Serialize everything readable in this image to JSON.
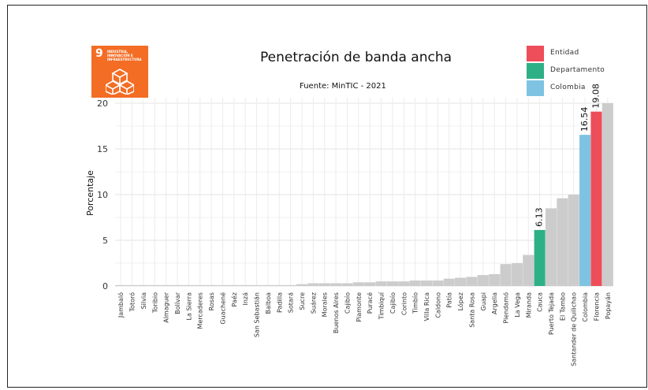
{
  "header": {
    "title": "Penetración de banda ancha",
    "subtitle": "Fuente: MinTIC - 2021"
  },
  "sdg_badge": {
    "number": "9",
    "text_line1": "INDUSTRIA,",
    "text_line2": "INNOVACIÓN E",
    "text_line3": "INFRAESTRUCTURA",
    "color": "#f36d25"
  },
  "legend": [
    {
      "label": "Entidad",
      "color": "#ee4d5a"
    },
    {
      "label": "Departamento",
      "color": "#2eb086"
    },
    {
      "label": "Colombia",
      "color": "#7ec3e2"
    }
  ],
  "chart_data": {
    "type": "bar",
    "ylabel": "Porcentaje",
    "xlabel": "",
    "ylim": [
      0,
      20
    ],
    "yticks": [
      0,
      5,
      10,
      15,
      20
    ],
    "grid": true,
    "default_color": "#cccccc",
    "categories": [
      "Jambaló",
      "Totoró",
      "Silvia",
      "Toribio",
      "Almaguer",
      "Bolívar",
      "La Sierra",
      "Mercaderes",
      "Rosas",
      "Guachené",
      "Paéz",
      "Inzá",
      "San Sebastián",
      "Balboa",
      "Padilla",
      "Sotará",
      "Sucre",
      "Suárez",
      "Morales",
      "Buenos Aires",
      "Cajibío",
      "Piamonte",
      "Puracé",
      "Timbiquí",
      "Cajibío",
      "Corinto",
      "Timbío",
      "Villa Rica",
      "Caldono",
      "Patía",
      "López",
      "Santa Rosa",
      "Guapi",
      "Argelia",
      "Piendamó",
      "La Vega",
      "Miranda",
      "Cauca",
      "Puerto Tejada",
      "El Tambo",
      "Santander de Quilichao",
      "Colombia",
      "Florencia",
      "Popayán"
    ],
    "values": [
      0.1,
      0.1,
      0.1,
      0.1,
      0.1,
      0.1,
      0.1,
      0.1,
      0.1,
      0.1,
      0.1,
      0.1,
      0.1,
      0.1,
      0.1,
      0.1,
      0.2,
      0.3,
      0.3,
      0.3,
      0.3,
      0.4,
      0.4,
      0.5,
      0.5,
      0.5,
      0.6,
      0.6,
      0.6,
      0.8,
      0.9,
      1.0,
      1.2,
      1.3,
      2.4,
      2.5,
      3.4,
      6.13,
      8.5,
      9.6,
      10.0,
      16.54,
      19.08,
      20.0
    ],
    "highlights": {
      "Cauca": {
        "role": "Departamento",
        "label": "6.13"
      },
      "Colombia": {
        "role": "Colombia",
        "label": "16.54"
      },
      "Florencia": {
        "role": "Entidad",
        "label": "19.08"
      }
    }
  }
}
